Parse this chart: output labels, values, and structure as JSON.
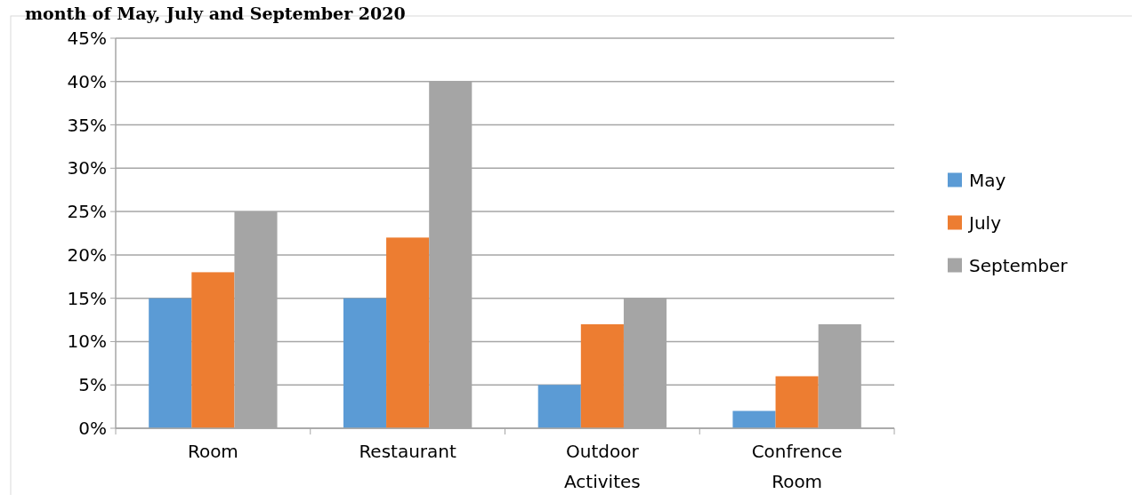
{
  "chart_data": {
    "type": "bar",
    "title": "month of May, July and September 2020",
    "categories": [
      "Room",
      "Restaurant",
      "Outdoor Activites",
      "Confrence Room"
    ],
    "series": [
      {
        "name": "May",
        "color": "#5b9bd5",
        "values": [
          15,
          15,
          5,
          2
        ]
      },
      {
        "name": "July",
        "color": "#ed7d31",
        "values": [
          18,
          22,
          12,
          6
        ]
      },
      {
        "name": "September",
        "color": "#a5a5a5",
        "values": [
          25,
          40,
          15,
          12
        ]
      }
    ],
    "ylim": [
      0,
      45
    ],
    "yticks": [
      {
        "value": 0,
        "label": "0%"
      },
      {
        "value": 5,
        "label": "5%"
      },
      {
        "value": 10,
        "label": "10%"
      },
      {
        "value": 15,
        "label": "15%"
      },
      {
        "value": 20,
        "label": "20%"
      },
      {
        "value": 25,
        "label": "25%"
      },
      {
        "value": 30,
        "label": "30%"
      },
      {
        "value": 35,
        "label": "35%"
      },
      {
        "value": 40,
        "label": "40%"
      },
      {
        "value": 45,
        "label": "45%"
      }
    ],
    "grid": "y",
    "legend": "right"
  }
}
